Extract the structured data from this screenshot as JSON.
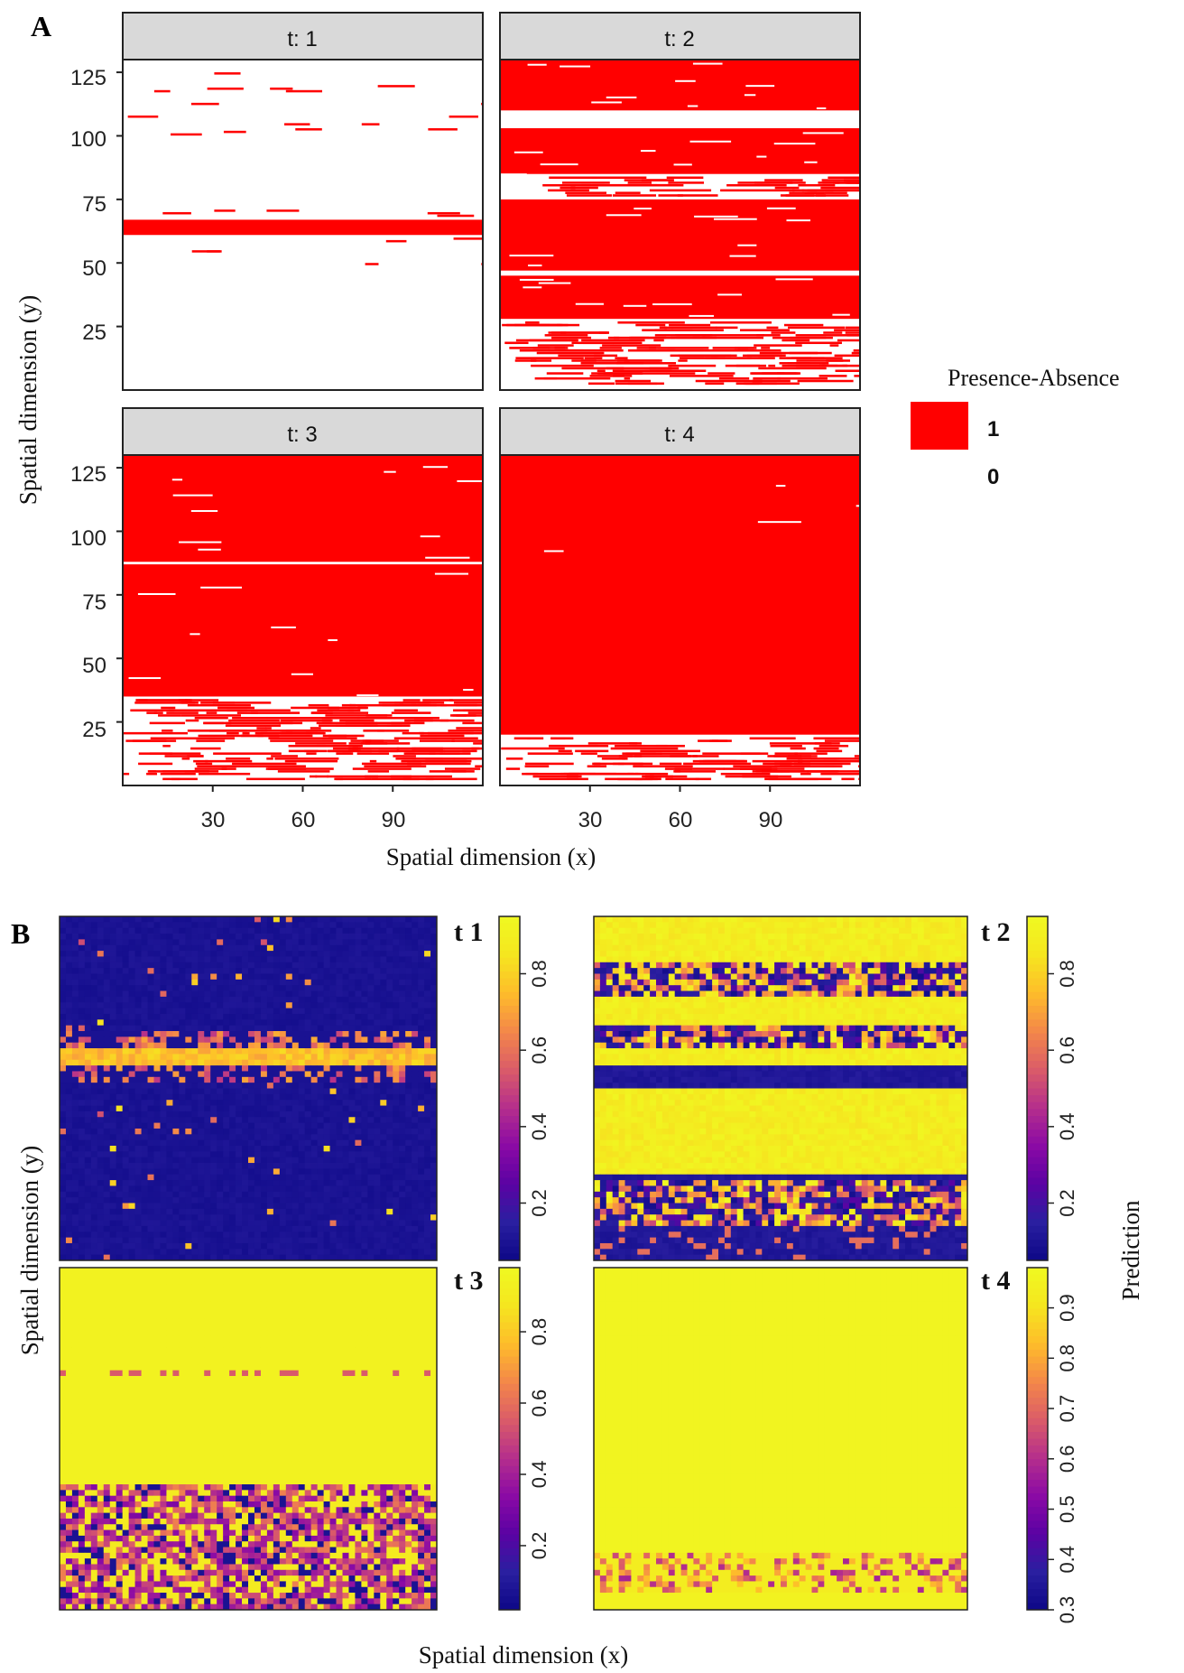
{
  "panel_labels": {
    "a": "A",
    "b": "B"
  },
  "colors": {
    "presence": "#ff0000",
    "absence": "#ffffff",
    "strip": "#d9d9d9",
    "viridis_plasma": [
      "#0d0887",
      "#2a1fa0",
      "#5b02a3",
      "#8b0aa5",
      "#b52f8c",
      "#db5c68",
      "#f48849",
      "#febd2a",
      "#f5e61f",
      "#f0f921"
    ]
  },
  "panel_a": {
    "xlabel": "Spatial dimension (x)",
    "ylabel": "Spatial dimension (y)",
    "x_ticks": [
      "30",
      "60",
      "90"
    ],
    "y_ticks": [
      "125",
      "100",
      "75",
      "50",
      "25"
    ],
    "legend": {
      "title": "Presence-Absence",
      "items": [
        {
          "label": "1"
        },
        {
          "label": "0"
        }
      ]
    },
    "facets": [
      {
        "label": "t: 1"
      },
      {
        "label": "t: 2"
      },
      {
        "label": "t: 3"
      },
      {
        "label": "t: 4"
      }
    ]
  },
  "panel_b": {
    "xlabel": "Spatial dimension (x)",
    "ylabel": "Spatial dimension (y)",
    "colorbar_title": "Prediction",
    "maps": [
      {
        "label": "t 1",
        "ticks": [
          "0.8",
          "0.6",
          "0.4",
          "0.2"
        ]
      },
      {
        "label": "t 2",
        "ticks": [
          "0.8",
          "0.6",
          "0.4",
          "0.2"
        ]
      },
      {
        "label": "t 3",
        "ticks": [
          "0.8",
          "0.6",
          "0.4",
          "0.2"
        ]
      },
      {
        "label": "t 4",
        "ticks": [
          "0.9",
          "0.8",
          "0.7",
          "0.6",
          "0.5",
          "0.4",
          "0.3"
        ]
      }
    ]
  },
  "chart_data": [
    {
      "type": "heatmap",
      "title": "A",
      "xlabel": "Spatial dimension (x)",
      "ylabel": "Spatial dimension (y)",
      "xlim": [
        0,
        120
      ],
      "ylim": [
        0,
        130
      ],
      "x_ticks": [
        30,
        60,
        90
      ],
      "y_ticks": [
        25,
        50,
        75,
        100,
        125
      ],
      "legend": {
        "title": "Presence-Absence",
        "levels": [
          1,
          0
        ]
      },
      "facets": [
        {
          "name": "t: 1",
          "presence_bands_y": [
            [
              61,
              67
            ]
          ],
          "scattered_presence_y": [
            [
              48,
              75
            ],
            [
              100,
              128
            ]
          ]
        },
        {
          "name": "t: 2",
          "presence_bands_y": [
            [
              28,
              45
            ],
            [
              47,
              75
            ],
            [
              85,
              103
            ],
            [
              110,
              130
            ]
          ],
          "scattered_presence_y": [
            [
              2,
              27
            ],
            [
              76,
              84
            ]
          ]
        },
        {
          "name": "t: 3",
          "presence_bands_y": [
            [
              35,
              87
            ],
            [
              88,
              130
            ]
          ],
          "scattered_presence_y": [
            [
              2,
              34
            ]
          ]
        },
        {
          "name": "t: 4",
          "presence_bands_y": [
            [
              20,
              130
            ]
          ],
          "scattered_presence_y": [
            [
              2,
              19
            ]
          ]
        }
      ]
    },
    {
      "type": "heatmap",
      "title": "B",
      "xlabel": "Spatial dimension (x)",
      "ylabel": "Spatial dimension (y)",
      "colorbar": "Prediction",
      "maps": [
        {
          "name": "t 1",
          "range": [
            0.05,
            0.95
          ],
          "colorbar_ticks": [
            0.2,
            0.4,
            0.6,
            0.8
          ],
          "high_bands_y": [
            [
              0.57,
              0.61
            ]
          ],
          "mid_bands_y": [
            [
              0.51,
              0.66
            ]
          ]
        },
        {
          "name": "t 2",
          "range": [
            0.05,
            0.95
          ],
          "colorbar_ticks": [
            0.2,
            0.4,
            0.6,
            0.8
          ],
          "high_bands_y": [
            [
              0.25,
              0.5
            ],
            [
              0.56,
              0.62
            ],
            [
              0.68,
              0.76
            ],
            [
              0.86,
              1.0
            ]
          ],
          "mid_bands_y": [
            [
              0.1,
              0.24
            ],
            [
              0.62,
              0.68
            ],
            [
              0.76,
              0.86
            ]
          ]
        },
        {
          "name": "t 3",
          "range": [
            0.02,
            0.98
          ],
          "colorbar_ticks": [
            0.2,
            0.4,
            0.6,
            0.8
          ],
          "high_bands_y": [
            [
              0.36,
              1.0
            ]
          ],
          "mid_bands_y": [
            [
              0.0,
              0.36
            ]
          ]
        },
        {
          "name": "t 4",
          "range": [
            0.3,
            0.98
          ],
          "colorbar_ticks": [
            0.3,
            0.4,
            0.5,
            0.6,
            0.7,
            0.8,
            0.9
          ],
          "high_bands_y": [
            [
              0.16,
              1.0
            ]
          ],
          "mid_bands_y": [
            [
              0.05,
              0.16
            ]
          ]
        }
      ]
    }
  ]
}
